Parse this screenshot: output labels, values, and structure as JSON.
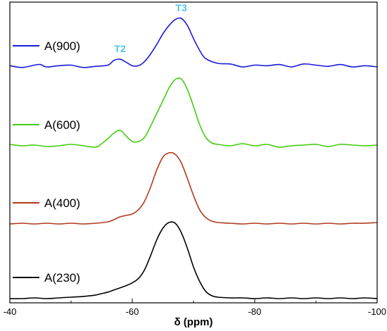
{
  "chart_data": {
    "type": "line",
    "xlabel": "δ (ppm)",
    "ylabel": "",
    "xlim": [
      -40,
      -100
    ],
    "x_reversed": true,
    "y_shown": false,
    "grid": false,
    "legend_placement": "left",
    "x_ticks": [
      -40,
      -60,
      -80,
      -100
    ],
    "x_tick_labels": [
      "-40",
      "-60",
      "-80",
      "-100"
    ],
    "series": [
      {
        "name": "A(900)",
        "color": "#1a1ad6",
        "x": [
          -40,
          -42,
          -44,
          -45,
          -46,
          -48,
          -50,
          -52,
          -54,
          -56,
          -57,
          -58,
          -59,
          -60,
          -61,
          -62,
          -63,
          -64,
          -65,
          -66,
          -67,
          -68,
          -69,
          -70,
          -71,
          -72,
          -74,
          -76,
          -78,
          -80,
          -82,
          -84,
          -86,
          -88,
          -90,
          -92,
          -94,
          -96,
          -98,
          -100
        ],
        "values": [
          0.02,
          -0.01,
          0.03,
          0.04,
          0.0,
          0.02,
          0.03,
          -0.01,
          0.01,
          0.03,
          0.11,
          0.13,
          0.08,
          0.02,
          0.02,
          0.09,
          0.22,
          0.38,
          0.56,
          0.7,
          0.8,
          0.82,
          0.7,
          0.48,
          0.28,
          0.14,
          0.06,
          0.05,
          0.0,
          0.03,
          0.02,
          0.04,
          0.0,
          0.05,
          0.03,
          0.01,
          0.04,
          0.0,
          0.02,
          0.0
        ]
      },
      {
        "name": "A(600)",
        "color": "#44cc11",
        "x": [
          -40,
          -42,
          -44,
          -46,
          -48,
          -50,
          -52,
          -54,
          -55,
          -56,
          -57,
          -58,
          -59,
          -60,
          -61,
          -62,
          -63,
          -64,
          -65,
          -66,
          -67,
          -68,
          -69,
          -70,
          -71,
          -72,
          -73,
          -74,
          -76,
          -78,
          -80,
          -82,
          -84,
          -86,
          -88,
          -90,
          -92,
          -94,
          -96,
          -98,
          -100
        ],
        "values": [
          0.02,
          0.0,
          0.01,
          -0.01,
          0.0,
          0.02,
          0.0,
          -0.02,
          0.03,
          0.1,
          0.18,
          0.22,
          0.14,
          0.06,
          0.06,
          0.12,
          0.28,
          0.46,
          0.64,
          0.82,
          0.94,
          0.95,
          0.8,
          0.56,
          0.3,
          0.12,
          0.04,
          0.02,
          0.0,
          0.03,
          0.0,
          0.02,
          -0.02,
          0.0,
          0.01,
          0.02,
          -0.01,
          0.02,
          0.01,
          0.0,
          0.01
        ]
      },
      {
        "name": "A(400)",
        "color": "#b03a1e",
        "x": [
          -40,
          -42,
          -44,
          -46,
          -48,
          -50,
          -52,
          -54,
          -56,
          -57,
          -58,
          -59,
          -60,
          -61,
          -62,
          -63,
          -64,
          -65,
          -66,
          -67,
          -68,
          -69,
          -70,
          -71,
          -72,
          -73,
          -74,
          -76,
          -78,
          -80,
          -82,
          -84,
          -86,
          -88,
          -90,
          -92,
          -94,
          -96,
          -98,
          -100
        ],
        "values": [
          0.0,
          0.01,
          0.0,
          0.01,
          0.0,
          0.01,
          0.0,
          0.01,
          0.03,
          0.06,
          0.1,
          0.12,
          0.14,
          0.2,
          0.32,
          0.52,
          0.76,
          0.94,
          1.0,
          0.98,
          0.86,
          0.64,
          0.4,
          0.2,
          0.09,
          0.04,
          0.02,
          0.01,
          0.0,
          0.01,
          0.0,
          0.01,
          0.0,
          0.01,
          0.0,
          0.01,
          0.0,
          0.01,
          0.01,
          0.02
        ]
      },
      {
        "name": "A(230)",
        "color": "#000000",
        "x": [
          -40,
          -42,
          -44,
          -46,
          -48,
          -50,
          -52,
          -54,
          -55,
          -56,
          -57,
          -58,
          -59,
          -60,
          -61,
          -62,
          -63,
          -64,
          -65,
          -66,
          -67,
          -68,
          -69,
          -70,
          -71,
          -72,
          -73,
          -74,
          -76,
          -78,
          -80,
          -82,
          -84,
          -86,
          -88,
          -90,
          -92,
          -94,
          -96,
          -98,
          -100
        ],
        "values": [
          0.0,
          0.0,
          0.01,
          0.0,
          0.01,
          0.02,
          0.03,
          0.05,
          0.07,
          0.09,
          0.12,
          0.15,
          0.18,
          0.22,
          0.28,
          0.4,
          0.6,
          0.82,
          0.98,
          1.06,
          1.05,
          0.92,
          0.7,
          0.44,
          0.24,
          0.1,
          0.04,
          0.02,
          0.01,
          0.01,
          0.0,
          0.01,
          0.0,
          0.01,
          0.0,
          0.01,
          0.0,
          0.01,
          0.0,
          0.01,
          0.0
        ]
      }
    ],
    "annotations": [
      {
        "text": "T3",
        "x": -68,
        "series": "A(900)",
        "color": "#4fc3e8"
      },
      {
        "text": "T2",
        "x": -58,
        "series": "A(900)",
        "color": "#4fc3e8"
      }
    ]
  }
}
